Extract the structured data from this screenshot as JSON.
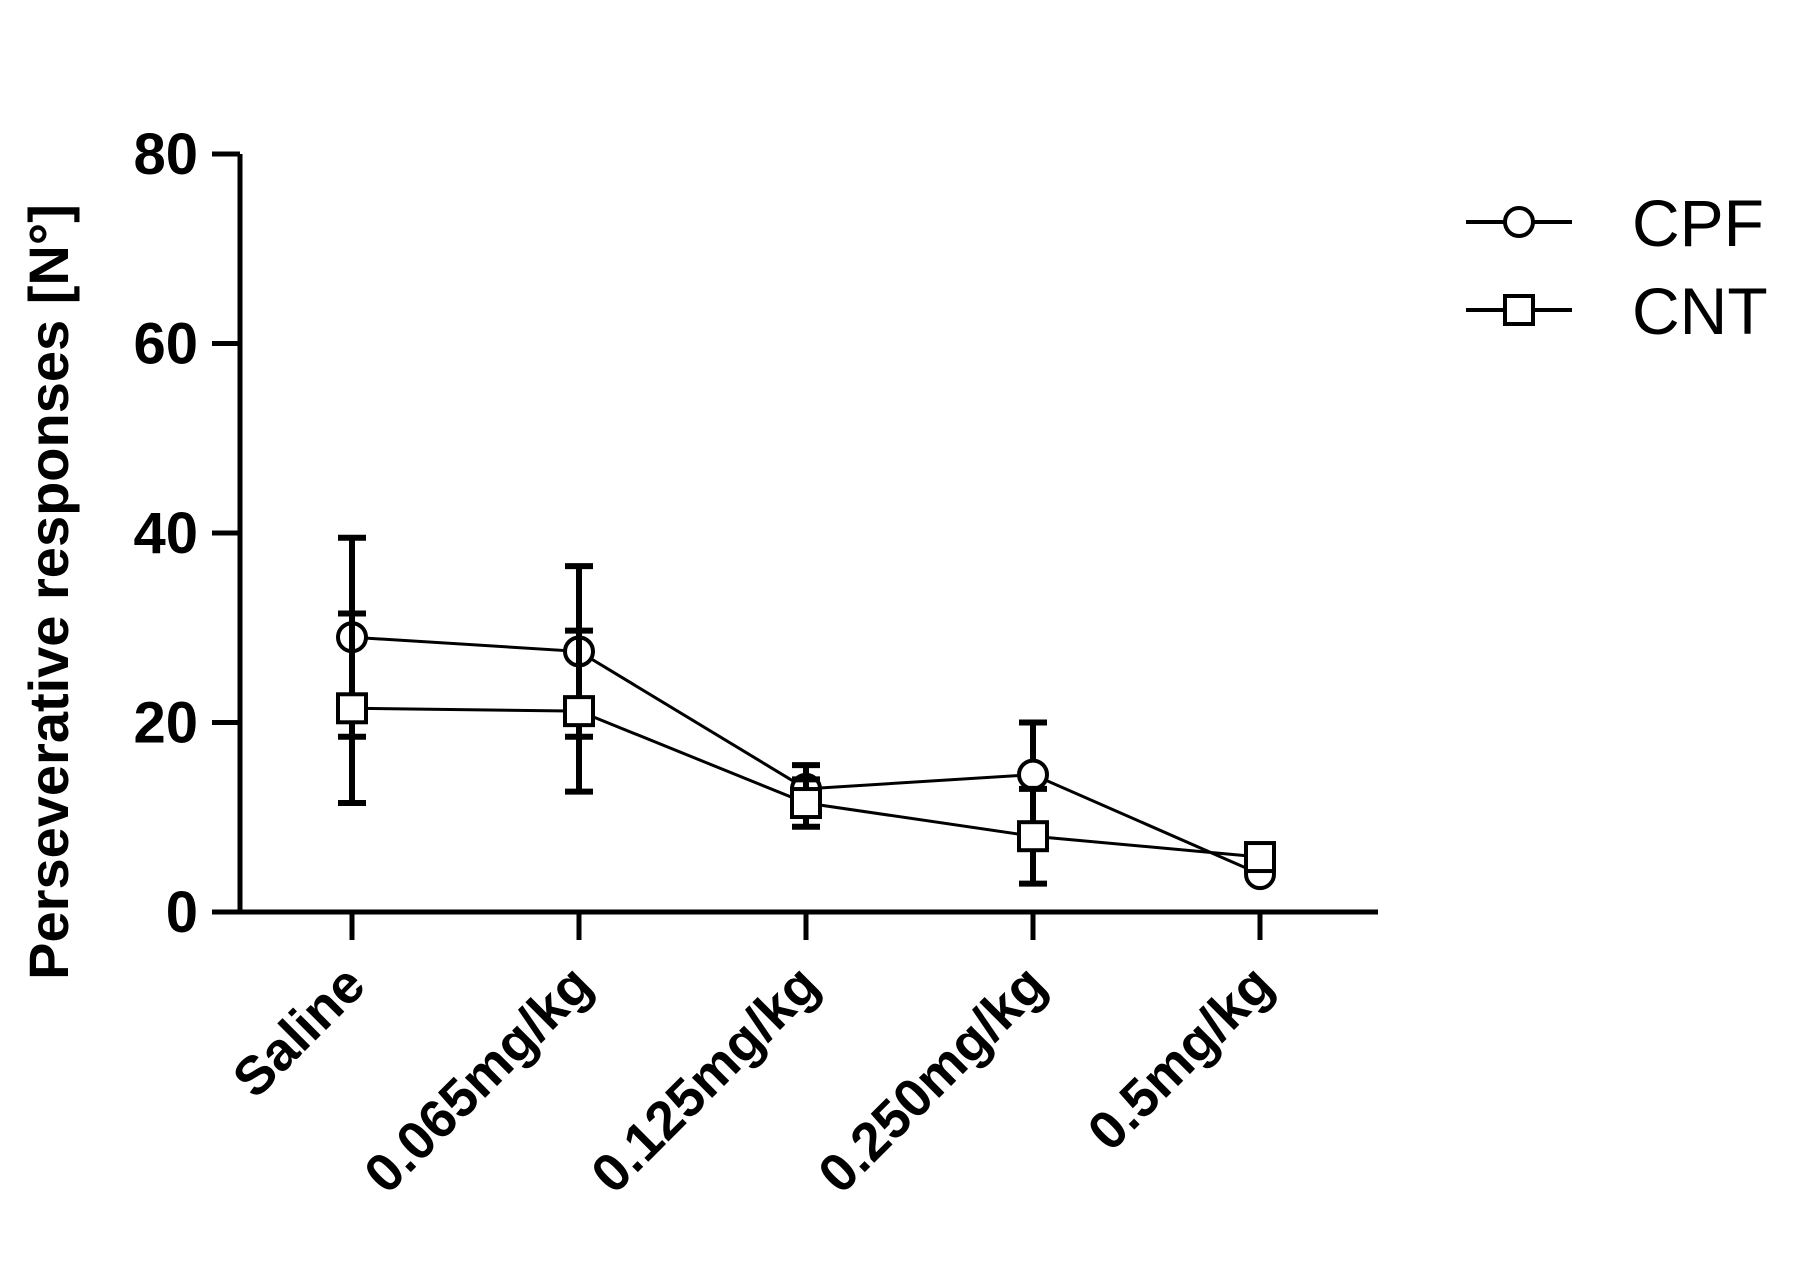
{
  "chart_data": {
    "type": "line",
    "ylabel": "Perseverative responses [N°]",
    "xlabel": "",
    "categories": [
      "Saline",
      "0.065mg/kg",
      "0.125mg/kg",
      "0.250mg/kg",
      "0.5mg/kg"
    ],
    "ylim": [
      0,
      80
    ],
    "yticks": [
      0,
      20,
      40,
      60,
      80
    ],
    "grid": false,
    "legend_position": "top-right",
    "series": [
      {
        "name": "CPF",
        "marker": "circle",
        "values": [
          29,
          27.5,
          13,
          14.5,
          4
        ],
        "error": [
          10.5,
          9,
          2.5,
          5.5,
          0.5
        ]
      },
      {
        "name": "CNT",
        "marker": "square",
        "values": [
          21.5,
          21.2,
          11.5,
          8,
          5.8
        ],
        "error": [
          10,
          8.5,
          2.5,
          5,
          0.5
        ]
      }
    ]
  }
}
